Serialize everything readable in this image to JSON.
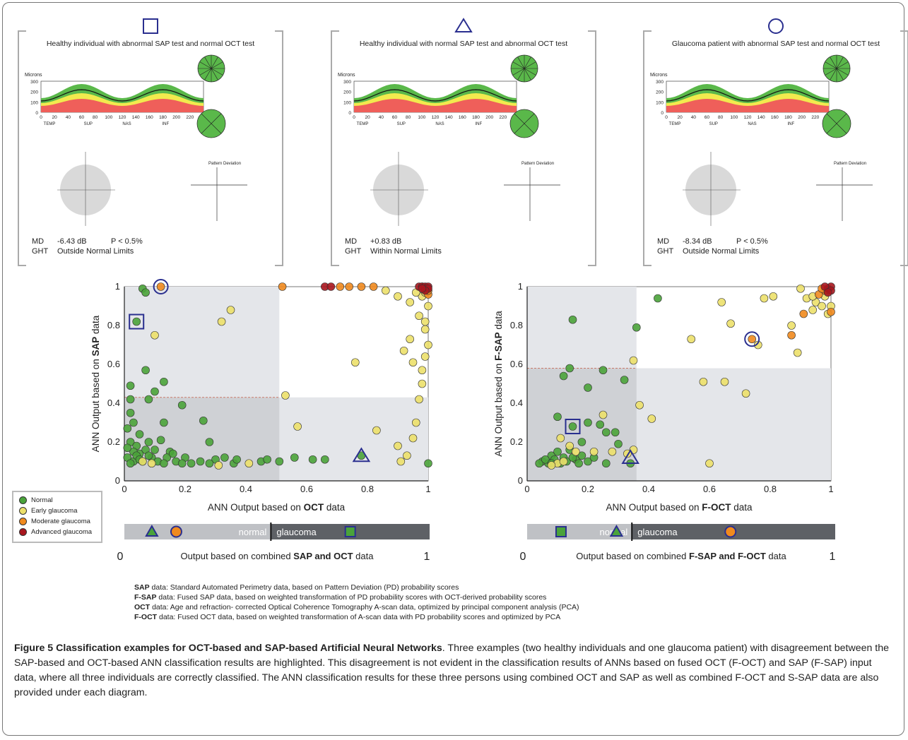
{
  "panels": [
    {
      "title": "Healthy individual with abnormal SAP test and normal OCT test",
      "symbol": "square",
      "md_label": "MD",
      "md_value": "-6.43 dB",
      "p_value": "P < 0.5%",
      "ght_label": "GHT",
      "ght_value": "Outside Normal Limits",
      "microns": "Microns",
      "pattern_deviation": "Pattern Deviation"
    },
    {
      "title": "Healthy individual with normal SAP test and abnormal OCT test",
      "symbol": "triangle",
      "md_label": "MD",
      "md_value": "+0.83 dB",
      "p_value": "",
      "ght_label": "GHT",
      "ght_value": "Within Normal Limits",
      "microns": "Microns",
      "pattern_deviation": "Pattern Deviation"
    },
    {
      "title": "Glaucoma patient with abnormal SAP test and normal OCT test",
      "symbol": "circle",
      "md_label": "MD",
      "md_value": "-8.34 dB",
      "p_value": "P < 0.5%",
      "ght_label": "GHT",
      "ght_value": "Outside Normal Limits",
      "microns": "Microns",
      "pattern_deviation": "Pattern Deviation"
    }
  ],
  "oct_axis": {
    "y_ticks": [
      "300",
      "200",
      "100",
      "0"
    ],
    "x_ticks": [
      "0",
      "20",
      "40",
      "60",
      "80",
      "100",
      "120",
      "140",
      "160",
      "180",
      "200",
      "220",
      "240"
    ],
    "regions": [
      "TEMP",
      "SUP",
      "NAS",
      "INF",
      "TEMP"
    ]
  },
  "legend": {
    "items": [
      {
        "label": "Normal",
        "color": "#4aa33a"
      },
      {
        "label": "Early glaucoma",
        "color": "#ece06a"
      },
      {
        "label": "Moderate glaucoma",
        "color": "#f08a1e"
      },
      {
        "label": "Advanced glaucoma",
        "color": "#a8161e"
      }
    ]
  },
  "chart_data": [
    {
      "type": "scatter",
      "xlabel_pre": "ANN Output based on ",
      "xlabel_bold": "OCT",
      "xlabel_post": " data",
      "ylabel_pre": "ANN Output based on ",
      "ylabel_bold": "SAP",
      "ylabel_post": " data",
      "xlim": [
        0,
        1
      ],
      "ylim": [
        0,
        1
      ],
      "x_ticks": [
        "0",
        "0.2",
        "0.4",
        "0.6",
        "0.8",
        "1"
      ],
      "y_ticks": [
        "0",
        "0.2",
        "0.4",
        "0.6",
        "0.8",
        "1"
      ],
      "threshold_x": 0.51,
      "threshold_y": 0.43,
      "highlights": [
        {
          "symbol": "square",
          "x": 0.04,
          "y": 0.82
        },
        {
          "symbol": "triangle",
          "x": 0.78,
          "y": 0.13
        },
        {
          "symbol": "circle",
          "x": 0.12,
          "y": 1.0
        }
      ],
      "points": {
        "normal": [
          [
            0.04,
            0.82
          ],
          [
            0.06,
            0.99
          ],
          [
            0.07,
            0.97
          ],
          [
            0.07,
            0.57
          ],
          [
            0.1,
            0.46
          ],
          [
            0.13,
            0.51
          ],
          [
            0.02,
            0.49
          ],
          [
            0.02,
            0.42
          ],
          [
            0.08,
            0.42
          ],
          [
            0.19,
            0.39
          ],
          [
            0.13,
            0.3
          ],
          [
            0.26,
            0.31
          ],
          [
            0.28,
            0.2
          ],
          [
            0.02,
            0.35
          ],
          [
            0.03,
            0.3
          ],
          [
            0.01,
            0.27
          ],
          [
            0.05,
            0.24
          ],
          [
            0.02,
            0.2
          ],
          [
            0.04,
            0.18
          ],
          [
            0.08,
            0.2
          ],
          [
            0.1,
            0.16
          ],
          [
            0.12,
            0.21
          ],
          [
            0.15,
            0.15
          ],
          [
            0.2,
            0.12
          ],
          [
            0.25,
            0.1
          ],
          [
            0.3,
            0.11
          ],
          [
            0.33,
            0.12
          ],
          [
            0.05,
            0.14
          ],
          [
            0.01,
            0.12
          ],
          [
            0.03,
            0.1
          ],
          [
            0.06,
            0.1
          ],
          [
            0.09,
            0.12
          ],
          [
            0.11,
            0.1
          ],
          [
            0.14,
            0.12
          ],
          [
            0.17,
            0.1
          ],
          [
            0.22,
            0.09
          ],
          [
            0.28,
            0.09
          ],
          [
            0.03,
            0.15
          ],
          [
            0.07,
            0.16
          ],
          [
            0.01,
            0.17
          ],
          [
            0.04,
            0.13
          ],
          [
            0.08,
            0.13
          ],
          [
            0.02,
            0.09
          ],
          [
            0.05,
            0.11
          ],
          [
            0.13,
            0.09
          ],
          [
            0.16,
            0.14
          ],
          [
            0.19,
            0.09
          ],
          [
            0.45,
            0.1
          ],
          [
            0.47,
            0.11
          ],
          [
            0.51,
            0.1
          ],
          [
            0.56,
            0.12
          ],
          [
            0.62,
            0.11
          ],
          [
            0.66,
            0.11
          ],
          [
            0.78,
            0.13
          ],
          [
            1.0,
            0.09
          ],
          [
            0.36,
            0.09
          ],
          [
            0.37,
            0.11
          ]
        ],
        "early": [
          [
            0.1,
            0.75
          ],
          [
            0.32,
            0.82
          ],
          [
            0.35,
            0.88
          ],
          [
            0.53,
            0.44
          ],
          [
            0.57,
            0.28
          ],
          [
            0.76,
            0.61
          ],
          [
            0.83,
            0.26
          ],
          [
            0.9,
            0.18
          ],
          [
            0.91,
            0.1
          ],
          [
            0.93,
            0.13
          ],
          [
            0.95,
            0.22
          ],
          [
            0.96,
            0.3
          ],
          [
            0.97,
            0.42
          ],
          [
            0.98,
            0.5
          ],
          [
            0.98,
            0.57
          ],
          [
            0.99,
            0.64
          ],
          [
            1.0,
            0.7
          ],
          [
            0.99,
            0.78
          ],
          [
            0.97,
            0.85
          ],
          [
            1.0,
            0.9
          ],
          [
            0.86,
            0.98
          ],
          [
            0.9,
            0.95
          ],
          [
            0.94,
            0.92
          ],
          [
            0.98,
            0.95
          ],
          [
            0.06,
            0.1
          ],
          [
            0.09,
            0.09
          ],
          [
            0.31,
            0.08
          ],
          [
            0.41,
            0.09
          ],
          [
            0.92,
            0.67
          ],
          [
            0.95,
            0.61
          ],
          [
            0.94,
            0.73
          ],
          [
            0.99,
            0.82
          ],
          [
            0.96,
            0.97
          ],
          [
            0.99,
            0.97
          ]
        ],
        "moderate": [
          [
            0.12,
            1.0
          ],
          [
            0.52,
            1.0
          ],
          [
            0.71,
            1.0
          ],
          [
            0.74,
            1.0
          ],
          [
            0.78,
            1.0
          ],
          [
            0.82,
            1.0
          ],
          [
            0.98,
            1.0
          ],
          [
            1.0,
            0.96
          ],
          [
            0.99,
            0.99
          ],
          [
            1.0,
            0.98
          ]
        ],
        "advanced": [
          [
            0.66,
            1.0
          ],
          [
            0.68,
            1.0
          ],
          [
            0.97,
            1.0
          ],
          [
            0.98,
            1.0
          ],
          [
            0.99,
            1.0
          ],
          [
            1.0,
            1.0
          ],
          [
            1.0,
            0.99
          ],
          [
            0.99,
            0.98
          ],
          [
            0.98,
            0.99
          ]
        ]
      },
      "bar": {
        "normal_label": "normal",
        "glaucoma_label": "glaucoma",
        "threshold": 0.48,
        "square": 0.74,
        "triangle": 0.09,
        "circle": 0.17
      },
      "combined_pre": "Output based on combined ",
      "combined_bold": "SAP and OCT",
      "combined_post": " data",
      "scale_min": "0",
      "scale_max": "1"
    },
    {
      "type": "scatter",
      "xlabel_pre": "ANN Output based on ",
      "xlabel_bold": "F-OCT",
      "xlabel_post": " data",
      "ylabel_pre": "ANN Output based on ",
      "ylabel_bold": "F-SAP",
      "ylabel_post": " data",
      "xlim": [
        0,
        1
      ],
      "ylim": [
        0,
        1
      ],
      "x_ticks": [
        "0",
        "0.2",
        "0.4",
        "0.6",
        "0.8",
        "1"
      ],
      "y_ticks": [
        "0",
        "0.2",
        "0.4",
        "0.6",
        "0.8",
        "1"
      ],
      "threshold_x": 0.36,
      "threshold_y": 0.58,
      "highlights": [
        {
          "symbol": "square",
          "x": 0.15,
          "y": 0.28
        },
        {
          "symbol": "triangle",
          "x": 0.34,
          "y": 0.12
        },
        {
          "symbol": "circle",
          "x": 0.74,
          "y": 0.73
        }
      ],
      "points": {
        "normal": [
          [
            0.15,
            0.83
          ],
          [
            0.43,
            0.94
          ],
          [
            0.36,
            0.79
          ],
          [
            0.15,
            0.28
          ],
          [
            0.12,
            0.54
          ],
          [
            0.14,
            0.58
          ],
          [
            0.1,
            0.33
          ],
          [
            0.2,
            0.48
          ],
          [
            0.25,
            0.57
          ],
          [
            0.32,
            0.52
          ],
          [
            0.2,
            0.3
          ],
          [
            0.24,
            0.29
          ],
          [
            0.26,
            0.25
          ],
          [
            0.29,
            0.25
          ],
          [
            0.3,
            0.19
          ],
          [
            0.18,
            0.2
          ],
          [
            0.08,
            0.13
          ],
          [
            0.1,
            0.15
          ],
          [
            0.12,
            0.12
          ],
          [
            0.14,
            0.16
          ],
          [
            0.16,
            0.11
          ],
          [
            0.18,
            0.13
          ],
          [
            0.2,
            0.1
          ],
          [
            0.05,
            0.1
          ],
          [
            0.07,
            0.09
          ],
          [
            0.09,
            0.11
          ],
          [
            0.11,
            0.09
          ],
          [
            0.13,
            0.1
          ],
          [
            0.15,
            0.12
          ],
          [
            0.17,
            0.09
          ],
          [
            0.22,
            0.12
          ],
          [
            0.26,
            0.09
          ],
          [
            0.04,
            0.09
          ],
          [
            0.06,
            0.11
          ],
          [
            0.08,
            0.09
          ],
          [
            0.34,
            0.09
          ]
        ],
        "early": [
          [
            0.58,
            0.51
          ],
          [
            0.65,
            0.51
          ],
          [
            0.72,
            0.45
          ],
          [
            0.6,
            0.09
          ],
          [
            0.37,
            0.39
          ],
          [
            0.41,
            0.32
          ],
          [
            0.54,
            0.73
          ],
          [
            0.64,
            0.92
          ],
          [
            0.67,
            0.81
          ],
          [
            0.76,
            0.7
          ],
          [
            0.78,
            0.94
          ],
          [
            0.81,
            0.95
          ],
          [
            0.87,
            0.8
          ],
          [
            0.89,
            0.66
          ],
          [
            0.9,
            0.99
          ],
          [
            0.92,
            0.94
          ],
          [
            0.94,
            0.88
          ],
          [
            0.95,
            0.92
          ],
          [
            0.97,
            0.9
          ],
          [
            0.98,
            0.95
          ],
          [
            0.99,
            0.86
          ],
          [
            1.0,
            0.9
          ],
          [
            0.35,
            0.16
          ],
          [
            0.25,
            0.34
          ],
          [
            0.11,
            0.22
          ],
          [
            0.14,
            0.18
          ],
          [
            0.1,
            0.09
          ],
          [
            0.12,
            0.1
          ],
          [
            0.16,
            0.15
          ],
          [
            0.08,
            0.08
          ],
          [
            0.22,
            0.15
          ],
          [
            0.28,
            0.15
          ],
          [
            0.33,
            0.14
          ],
          [
            0.35,
            0.62
          ],
          [
            0.94,
            0.95
          ]
        ],
        "moderate": [
          [
            0.74,
            0.73
          ],
          [
            0.87,
            0.75
          ],
          [
            0.91,
            0.86
          ],
          [
            0.96,
            0.96
          ],
          [
            0.98,
            0.98
          ],
          [
            1.0,
            0.87
          ],
          [
            0.97,
            0.99
          ]
        ],
        "advanced": [
          [
            0.99,
            0.99
          ],
          [
            1.0,
            1.0
          ],
          [
            0.98,
            1.0
          ],
          [
            1.0,
            0.98
          ],
          [
            0.99,
            0.97
          ]
        ]
      },
      "bar": {
        "normal_label": "normal",
        "glaucoma_label": "glaucoma",
        "threshold": 0.34,
        "square": 0.11,
        "triangle": 0.29,
        "circle": 0.66
      },
      "combined_pre": "Output based on combined ",
      "combined_bold": "F-SAP and F-OCT",
      "combined_post": " data",
      "scale_min": "0",
      "scale_max": "1"
    }
  ],
  "definitions": [
    {
      "term": "SAP",
      "text": " data:  Standard Automated Perimetry data, based on Pattern Deviation (PD) probability scores"
    },
    {
      "term": "F-SAP",
      "text": " data:  Fused SAP data, based on weighted transformation of PD probability scores with OCT-derived probability scores"
    },
    {
      "term": "OCT",
      "text": " data:  Age and refraction- corrected Optical Coherence Tomography A-scan data, optimized by principal component analysis (PCA)"
    },
    {
      "term": "F-OCT",
      "text": " data:  Fused OCT data, based on weighted transformation of A-scan data with PD probability scores and optimized by PCA"
    }
  ],
  "caption": {
    "bold": "Figure 5 Classification examples for OCT-based and SAP-based Artificial Neural Networks",
    "text": ". Three examples (two healthy individuals and one glaucoma patient) with disagreement between the SAP-based and OCT-based ANN classification results are highlighted. This disagreement is not evident in the classification results of ANNs based on fused OCT (F-OCT) and SAP (F-SAP) input data, where all three individuals are correctly classified. The ANN classification results for these three persons using combined OCT and SAP as well as combined F-OCT and S-SAP data are also provided under each diagram."
  }
}
